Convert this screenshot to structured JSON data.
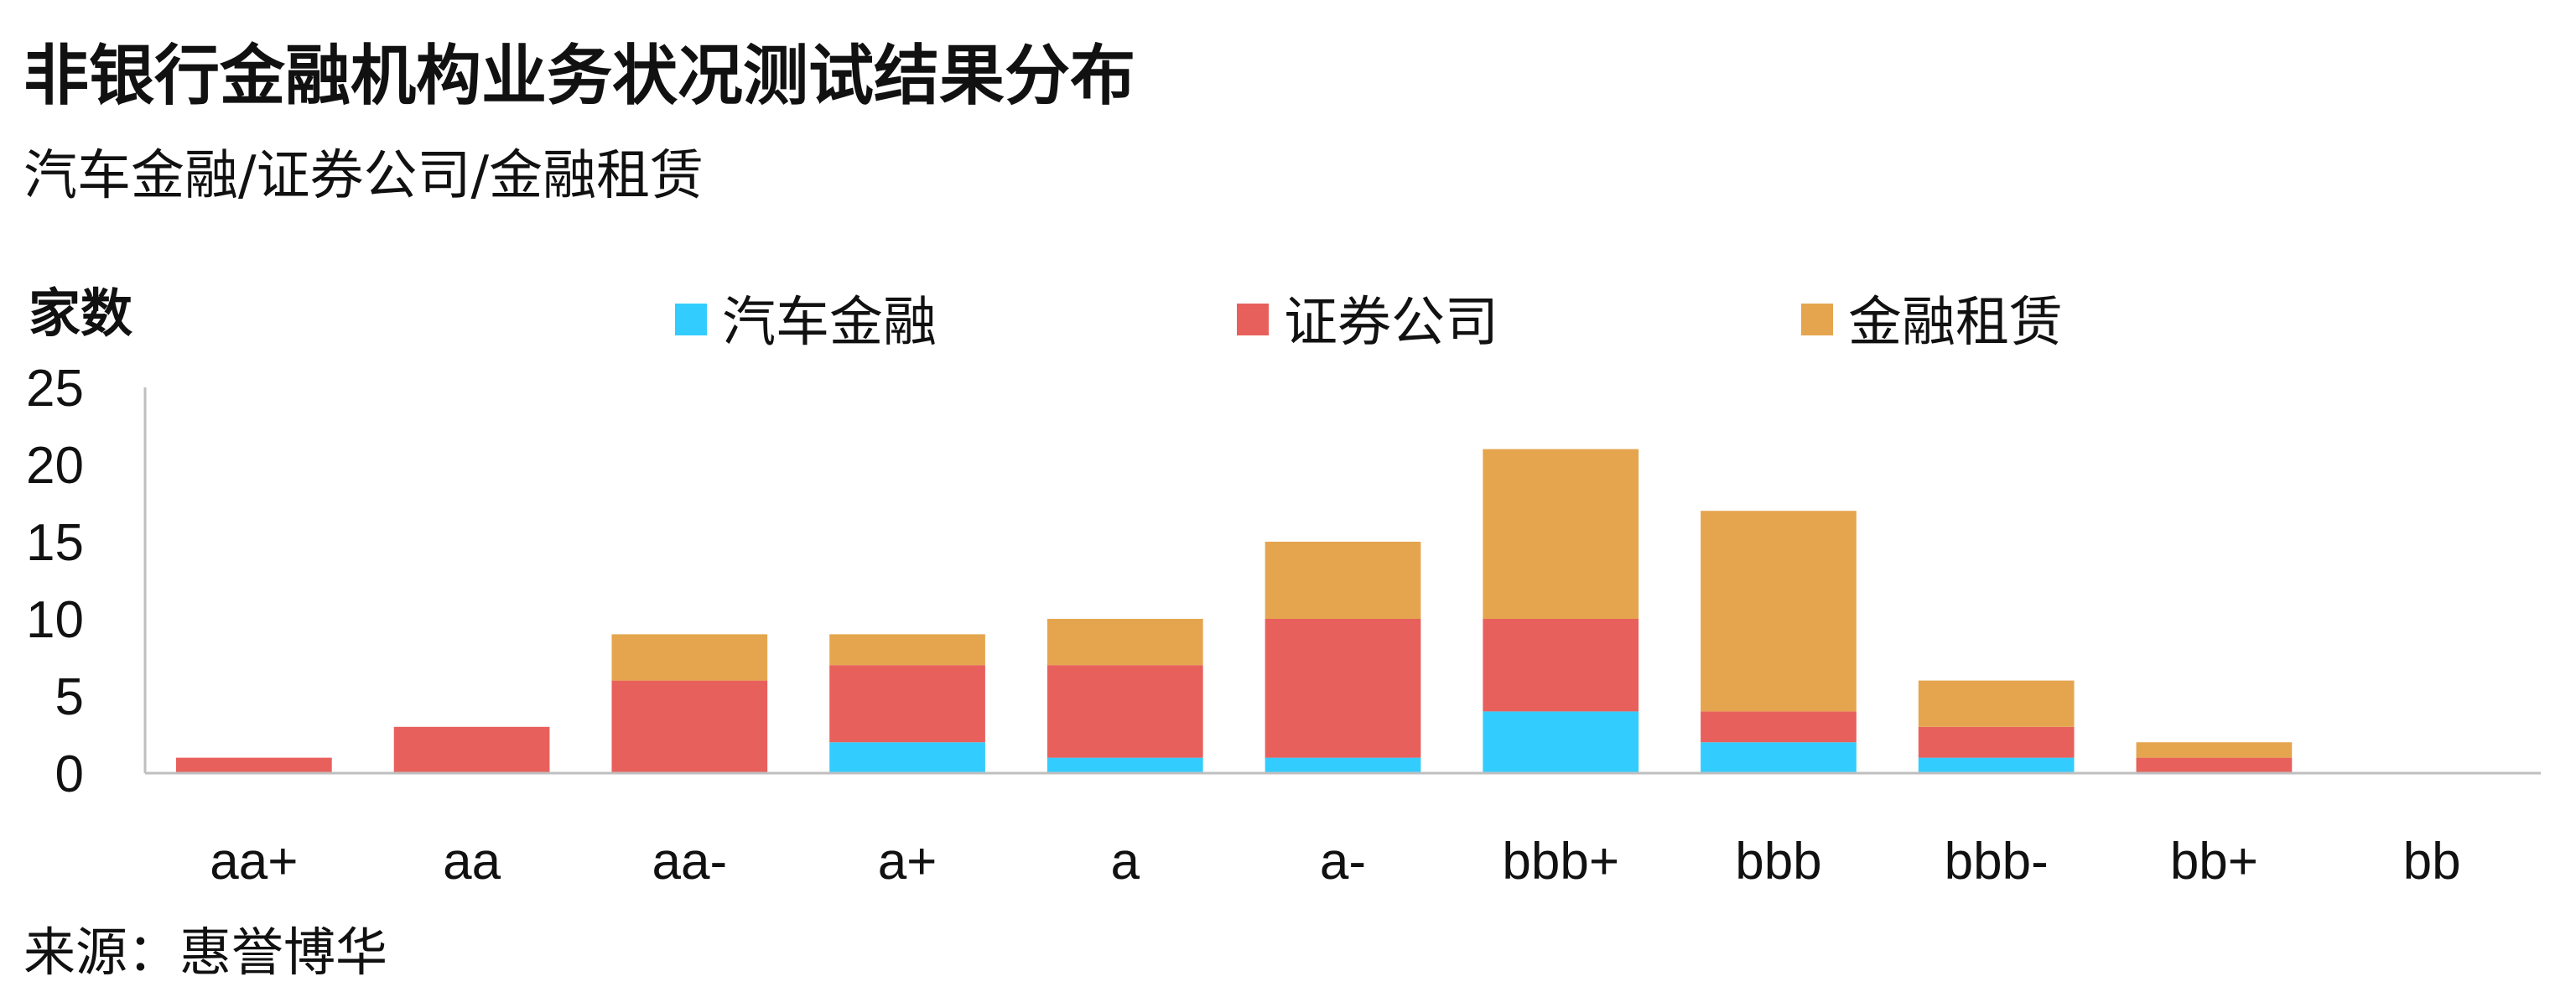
{
  "title": "非银行金融机构业务状况测试结果分布",
  "subtitle": "汽车金融/证券公司/金融租赁",
  "source": "来源：惠誉博华",
  "chart_data": {
    "type": "bar",
    "stacked": true,
    "ylabel": "家数",
    "ylim": [
      0,
      25
    ],
    "yticks": [
      0,
      5,
      10,
      15,
      20,
      25
    ],
    "legend_position": "top",
    "categories": [
      "aa+",
      "aa",
      "aa-",
      "a+",
      "a",
      "a-",
      "bbb+",
      "bbb",
      "bbb-",
      "bb+",
      "bb"
    ],
    "series": [
      {
        "name": "汽车金融",
        "color": "#33ccff",
        "values": [
          0,
          0,
          0,
          2,
          1,
          1,
          4,
          2,
          1,
          0,
          0
        ]
      },
      {
        "name": "证券公司",
        "color": "#e8605c",
        "values": [
          1,
          3,
          6,
          5,
          6,
          9,
          6,
          2,
          2,
          1,
          0
        ]
      },
      {
        "name": "金融租赁",
        "color": "#e5a54e",
        "values": [
          0,
          0,
          3,
          2,
          3,
          5,
          11,
          13,
          3,
          1,
          0
        ]
      }
    ]
  }
}
